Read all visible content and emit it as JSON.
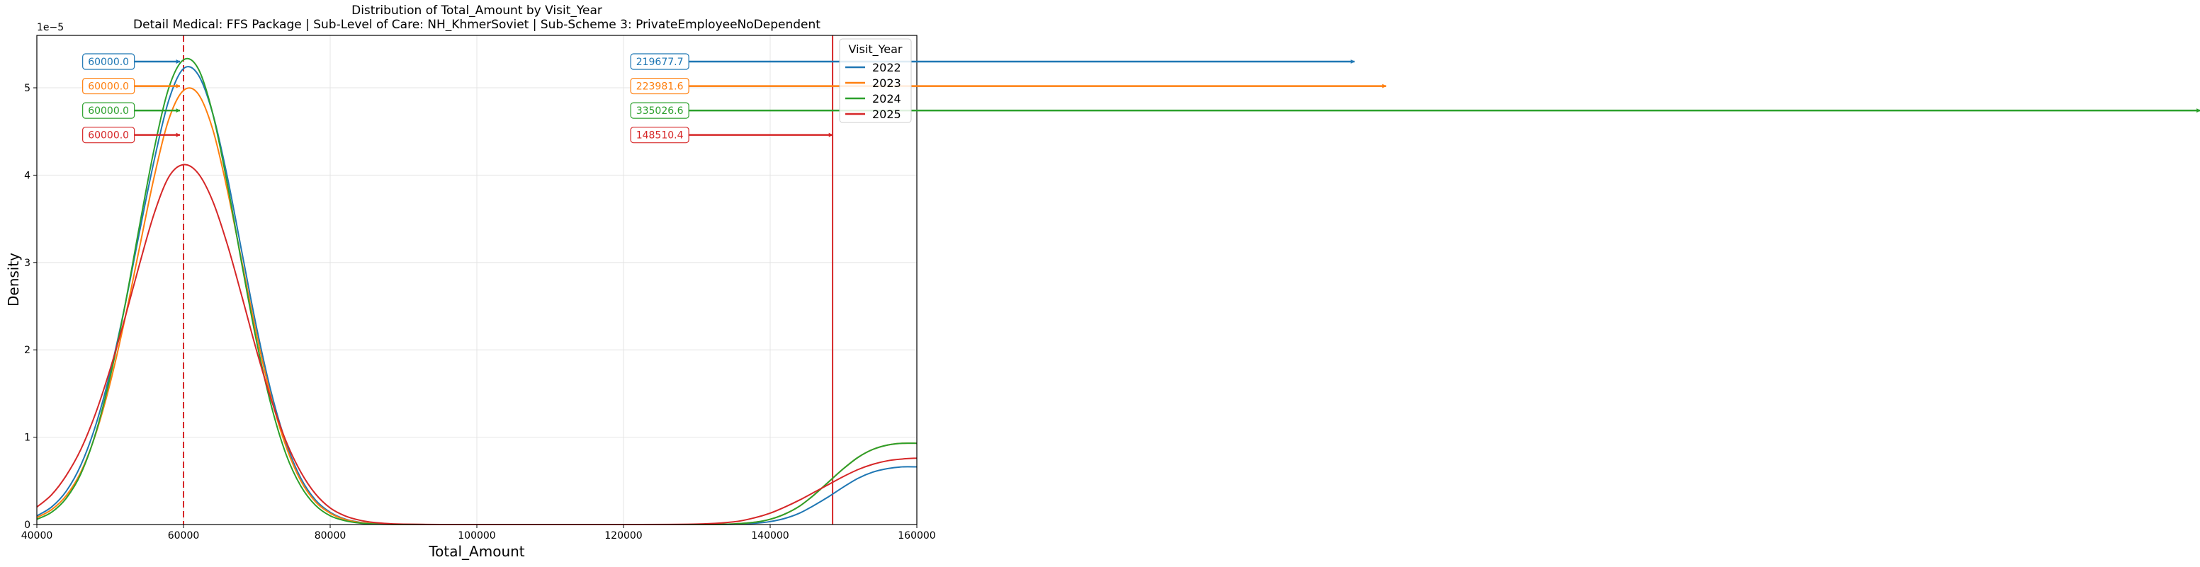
{
  "chart_data": {
    "type": "line",
    "title": "Distribution of Total_Amount by Visit_Year",
    "subtitle": "Detail Medical: FFS Package | Sub-Level of Care: NH_KhmerSoviet | Sub-Scheme 3: PrivateEmployeeNoDependent",
    "xlabel": "Total_Amount",
    "ylabel": "Density",
    "y_offset_label": "1e−5",
    "xlim": [
      40000,
      160000
    ],
    "ylim": [
      0,
      5.6
    ],
    "x_ticks": [
      40000,
      60000,
      80000,
      100000,
      120000,
      140000,
      160000
    ],
    "x_tick_labels": [
      "40000",
      "60000",
      "80000",
      "100000",
      "120000",
      "140000",
      "160000"
    ],
    "y_ticks": [
      0,
      1,
      2,
      3,
      4,
      5
    ],
    "y_tick_labels": [
      "0",
      "1",
      "2",
      "3",
      "4",
      "5"
    ],
    "grid": true,
    "legend_title": "Visit_Year",
    "legend_position": "upper right",
    "x": [
      40000,
      42000,
      44000,
      46000,
      48000,
      50000,
      52000,
      54000,
      56000,
      58000,
      60000,
      62000,
      64000,
      66000,
      68000,
      70000,
      72000,
      74000,
      76000,
      78000,
      80000,
      82000,
      84000,
      86000,
      88000,
      90000,
      95000,
      100000,
      110000,
      120000,
      130000,
      135000,
      138000,
      140000,
      142000,
      144000,
      146000,
      148000,
      150000,
      152000,
      154000,
      156000,
      158000,
      160000
    ],
    "series": [
      {
        "name": "2022",
        "color": "#1f77b4",
        "values": [
          0.099,
          0.2,
          0.38,
          0.68,
          1.13,
          1.74,
          2.5,
          3.35,
          4.17,
          4.86,
          5.22,
          5.15,
          4.7,
          3.97,
          3.1,
          2.24,
          1.5,
          0.93,
          0.53,
          0.28,
          0.14,
          0.063,
          0.026,
          0.01,
          0.004,
          0.0013,
          0.0,
          0.0,
          0.0,
          0.0,
          0.0,
          0.003,
          0.015,
          0.034,
          0.07,
          0.13,
          0.22,
          0.32,
          0.43,
          0.53,
          0.6,
          0.64,
          0.66,
          0.66
        ]
      },
      {
        "name": "2023",
        "color": "#ff7f0e",
        "values": [
          0.08,
          0.17,
          0.33,
          0.6,
          1.03,
          1.62,
          2.35,
          3.17,
          3.98,
          4.64,
          4.97,
          4.93,
          4.52,
          3.82,
          2.99,
          2.16,
          1.44,
          0.89,
          0.5,
          0.26,
          0.13,
          0.058,
          0.024,
          0.009,
          0.0035,
          0.0012,
          0.0,
          0.0,
          0.0,
          0.0,
          0.0,
          0.006,
          0.027,
          0.06,
          0.12,
          0.21,
          0.34,
          0.49,
          0.64,
          0.77,
          0.86,
          0.91,
          0.93,
          0.93
        ]
      },
      {
        "name": "2024",
        "color": "#2ca02c",
        "values": [
          0.06,
          0.14,
          0.3,
          0.58,
          1.04,
          1.69,
          2.5,
          3.42,
          4.3,
          5.0,
          5.32,
          5.22,
          4.7,
          3.89,
          2.96,
          2.08,
          1.35,
          0.8,
          0.44,
          0.22,
          0.1,
          0.044,
          0.017,
          0.006,
          0.002,
          0.0007,
          0.0,
          0.0,
          0.0,
          0.0,
          0.0,
          0.006,
          0.027,
          0.06,
          0.12,
          0.21,
          0.34,
          0.49,
          0.64,
          0.77,
          0.86,
          0.91,
          0.93,
          0.93
        ]
      },
      {
        "name": "2025",
        "color": "#d62728",
        "values": [
          0.2,
          0.34,
          0.56,
          0.86,
          1.27,
          1.78,
          2.36,
          2.98,
          3.56,
          3.98,
          4.12,
          4.02,
          3.7,
          3.2,
          2.6,
          1.98,
          1.42,
          0.95,
          0.6,
          0.35,
          0.19,
          0.1,
          0.05,
          0.023,
          0.01,
          0.004,
          0.0003,
          0.0,
          0.0,
          0.0,
          0.005,
          0.03,
          0.08,
          0.13,
          0.2,
          0.28,
          0.37,
          0.46,
          0.55,
          0.63,
          0.69,
          0.73,
          0.75,
          0.76
        ]
      }
    ],
    "reference_lines": [
      {
        "x": 60000,
        "color": "#d62728",
        "style": "dashed"
      },
      {
        "x": 148510.4,
        "color": "#d62728",
        "style": "solid"
      }
    ],
    "annotations": [
      {
        "text": "60000.0",
        "series": "2022",
        "group": "left",
        "x": 60000,
        "y": 5.3
      },
      {
        "text": "60000.0",
        "series": "2023",
        "group": "left",
        "x": 60000,
        "y": 5.02
      },
      {
        "text": "60000.0",
        "series": "2024",
        "group": "left",
        "x": 60000,
        "y": 4.74
      },
      {
        "text": "60000.0",
        "series": "2025",
        "group": "left",
        "x": 60000,
        "y": 4.46
      },
      {
        "text": "219677.7",
        "series": "2022",
        "group": "right",
        "x": 219677.7,
        "y": 5.3
      },
      {
        "text": "223981.6",
        "series": "2023",
        "group": "right",
        "x": 223981.6,
        "y": 5.02
      },
      {
        "text": "335026.6",
        "series": "2024",
        "group": "right",
        "x": 335026.6,
        "y": 4.74
      },
      {
        "text": "148510.4",
        "series": "2025",
        "group": "right",
        "x": 148510.4,
        "y": 4.46
      }
    ]
  }
}
